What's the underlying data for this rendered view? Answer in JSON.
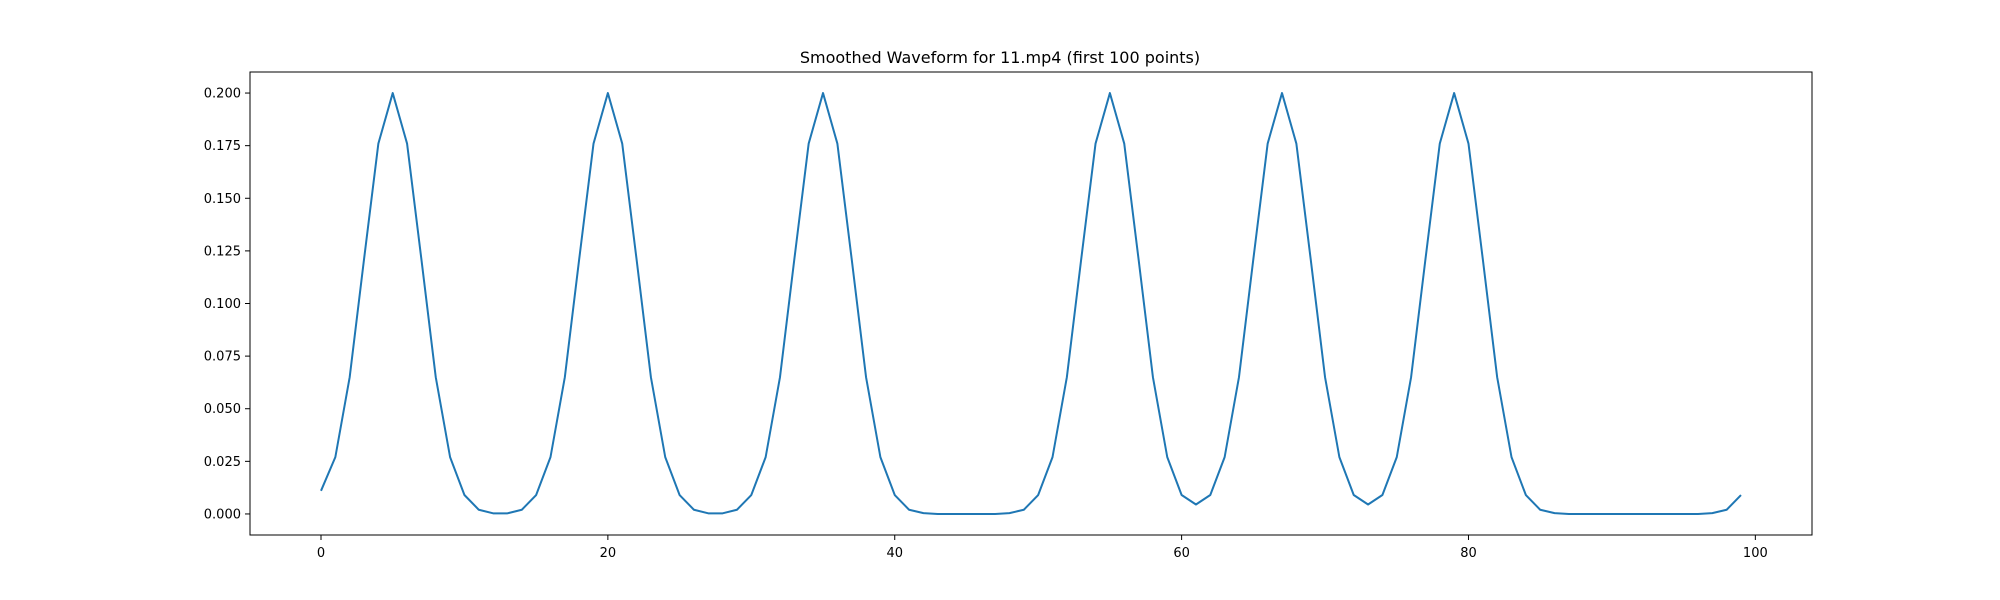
{
  "chart_data": {
    "type": "line",
    "title": "Smoothed Waveform for 11.mp4 (first 100 points)",
    "xlabel": "",
    "ylabel": "",
    "xlim": [
      -4.95,
      103.95
    ],
    "ylim": [
      -0.01,
      0.21
    ],
    "xticks": [
      0,
      20,
      40,
      60,
      80,
      100
    ],
    "xtick_labels": [
      "0",
      "20",
      "40",
      "60",
      "80",
      "100"
    ],
    "yticks": [
      0.0,
      0.025,
      0.05,
      0.075,
      0.1,
      0.125,
      0.15,
      0.175,
      0.2
    ],
    "ytick_labels": [
      "0.000",
      "0.025",
      "0.050",
      "0.075",
      "0.100",
      "0.125",
      "0.150",
      "0.175",
      "0.200"
    ],
    "grid": false,
    "legend": false,
    "series": [
      {
        "color": "#1f77b4",
        "x": [
          0,
          1,
          2,
          3,
          4,
          5,
          6,
          7,
          8,
          9,
          10,
          11,
          12,
          13,
          14,
          15,
          16,
          17,
          18,
          19,
          20,
          21,
          22,
          23,
          24,
          25,
          26,
          27,
          28,
          29,
          30,
          31,
          32,
          33,
          34,
          35,
          36,
          37,
          38,
          39,
          40,
          41,
          42,
          43,
          44,
          45,
          46,
          47,
          48,
          49,
          50,
          51,
          52,
          53,
          54,
          55,
          56,
          57,
          58,
          59,
          60,
          61,
          62,
          63,
          64,
          65,
          66,
          67,
          68,
          69,
          70,
          71,
          72,
          73,
          74,
          75,
          76,
          77,
          78,
          79,
          80,
          81,
          82,
          83,
          84,
          85,
          86,
          87,
          88,
          89,
          90,
          91,
          92,
          93,
          94,
          95,
          96,
          97,
          98,
          99
        ],
        "values": [
          0.011,
          0.027,
          0.065,
          0.121,
          0.176,
          0.2,
          0.176,
          0.121,
          0.065,
          0.027,
          0.009,
          0.002,
          0.0003,
          0.0003,
          0.002,
          0.009,
          0.027,
          0.065,
          0.121,
          0.176,
          0.2,
          0.176,
          0.121,
          0.065,
          0.027,
          0.009,
          0.002,
          0.0003,
          0.0003,
          0.002,
          0.009,
          0.027,
          0.065,
          0.121,
          0.176,
          0.2,
          0.176,
          0.121,
          0.065,
          0.027,
          0.009,
          0.002,
          0.0004,
          0.0,
          0.0,
          0.0,
          0.0,
          0.0,
          0.0004,
          0.002,
          0.009,
          0.027,
          0.065,
          0.121,
          0.176,
          0.2,
          0.176,
          0.121,
          0.065,
          0.027,
          0.009,
          0.0045,
          0.009,
          0.027,
          0.065,
          0.121,
          0.176,
          0.2,
          0.176,
          0.121,
          0.065,
          0.027,
          0.009,
          0.0045,
          0.009,
          0.027,
          0.065,
          0.121,
          0.176,
          0.2,
          0.176,
          0.121,
          0.065,
          0.027,
          0.009,
          0.002,
          0.0004,
          0.0,
          0.0,
          0.0,
          0.0,
          0.0,
          0.0,
          0.0,
          0.0,
          0.0,
          0.0,
          0.0004,
          0.002,
          0.009
        ]
      }
    ]
  }
}
